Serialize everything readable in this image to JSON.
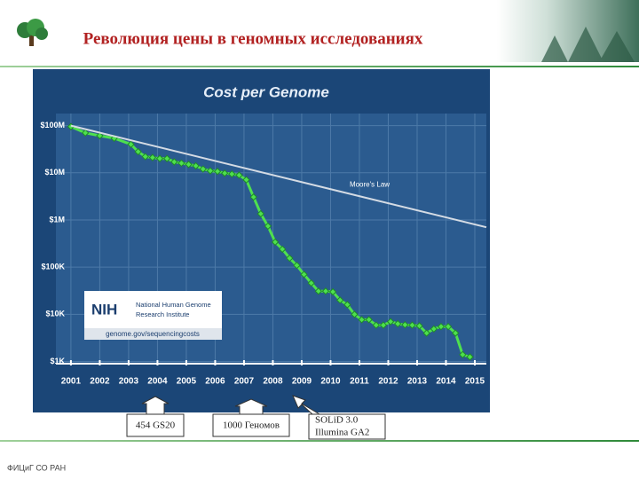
{
  "slide": {
    "title": "Революция цены в геномных исследованиях",
    "callouts": [
      {
        "text": "454 GS20"
      },
      {
        "text": "1000 Геномов"
      },
      {
        "lines": [
          "SOLiD 3.0",
          "Illumina GA2"
        ]
      }
    ],
    "footer": "ФИЦиГ СО РАН"
  },
  "chart_data": {
    "type": "line",
    "title": "Cost per Genome",
    "log_scale": true,
    "grid": true,
    "xlim": [
      2000.48,
      2015.4
    ],
    "xticks": [
      2001,
      2002,
      2003,
      2004,
      2005,
      2006,
      2007,
      2008,
      2009,
      2010,
      2011,
      2012,
      2013,
      2014,
      2015
    ],
    "ylim": [
      900,
      180000000
    ],
    "yticks": [
      {
        "value": 1000,
        "label": "$1K"
      },
      {
        "value": 10000,
        "label": "$10K"
      },
      {
        "value": 100000,
        "label": "$100K"
      },
      {
        "value": 1000000,
        "label": "$1M"
      },
      {
        "value": 10000000,
        "label": "$10M"
      },
      {
        "value": 100000000,
        "label": "$100M"
      }
    ],
    "series": [
      {
        "color": "#4ee04e",
        "x": [
          2001.0,
          2001.5,
          2002.0,
          2002.5,
          2003.08,
          2003.33,
          2003.58,
          2003.83,
          2004.08,
          2004.33,
          2004.58,
          2004.83,
          2005.08,
          2005.33,
          2005.58,
          2005.83,
          2006.08,
          2006.33,
          2006.58,
          2006.83,
          2007.08,
          2007.33,
          2007.58,
          2007.83,
          2008.08,
          2008.33,
          2008.58,
          2008.83,
          2009.08,
          2009.33,
          2009.58,
          2009.83,
          2010.08,
          2010.33,
          2010.58,
          2010.83,
          2011.08,
          2011.33,
          2011.58,
          2011.83,
          2012.08,
          2012.33,
          2012.58,
          2012.83,
          2013.08,
          2013.33,
          2013.58,
          2013.83,
          2014.08,
          2014.33,
          2014.58,
          2014.83
        ],
        "values": [
          95000000,
          70000000,
          61000000,
          54000000,
          40000000,
          28000000,
          22000000,
          21000000,
          20000000,
          20000000,
          17000000,
          16000000,
          15000000,
          14000000,
          12000000,
          11000000,
          10700000,
          9800000,
          9400000,
          8900000,
          7100000,
          3060000,
          1350000,
          740000,
          340000,
          240000,
          155000,
          109000,
          70000,
          46000,
          31000,
          31000,
          30000,
          20000,
          16000,
          10000,
          7700,
          7700,
          5900,
          5900,
          7000,
          6300,
          6000,
          5900,
          5700,
          4000,
          4900,
          5500,
          5500,
          4000,
          1400,
          1250
        ]
      },
      {
        "name": "Moore's Law",
        "color": "#d4dbe4",
        "x": [
          2001.0,
          2015.4
        ],
        "values": [
          100000000,
          700000
        ]
      }
    ],
    "source": {
      "logo": "NIH",
      "institute_lines": [
        "National Human Genome",
        "Research Institute"
      ],
      "url": "genome.gov/sequencingcosts"
    }
  }
}
